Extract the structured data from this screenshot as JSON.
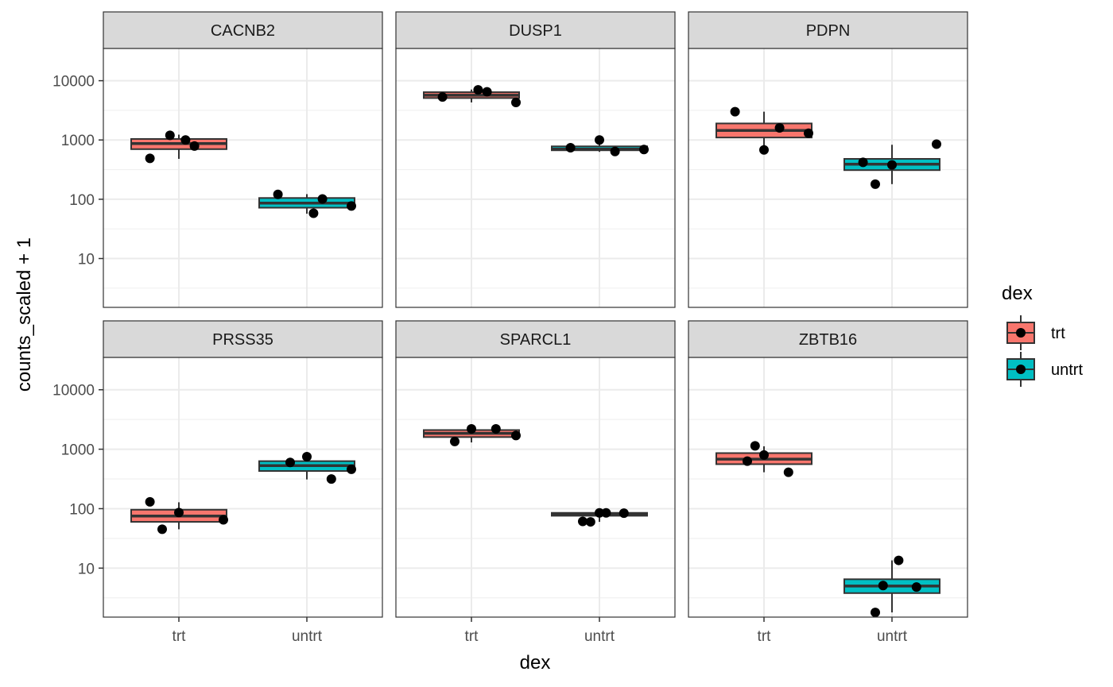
{
  "chart_data": {
    "type": "box",
    "xlabel": "dex",
    "ylabel": "counts_scaled + 1",
    "y_scale": "log10",
    "y_ticks": [
      10,
      100,
      1000,
      10000
    ],
    "y_tick_labels": [
      "10",
      "100",
      "1000",
      "10000"
    ],
    "ylim": [
      1.5,
      35000
    ],
    "categories": [
      "trt",
      "untrt"
    ],
    "grid": true,
    "legend": {
      "title": "dex",
      "position": "right",
      "entries": [
        {
          "label": "trt",
          "color": "#F8766D"
        },
        {
          "label": "untrt",
          "color": "#00BFC4"
        }
      ]
    },
    "facets": [
      {
        "name": "CACNB2",
        "boxes": {
          "trt": {
            "lower": 700,
            "median": 870,
            "upper": 1040,
            "whisker_low": 480,
            "whisker_high": 1230,
            "points": [
              1200,
              1000,
              790,
              490
            ]
          },
          "untrt": {
            "lower": 72,
            "median": 86,
            "upper": 105,
            "whisker_low": 57,
            "whisker_high": 122,
            "points": [
              58,
              101,
              121,
              77
            ]
          }
        }
      },
      {
        "name": "DUSP1",
        "boxes": {
          "trt": {
            "lower": 5100,
            "median": 5700,
            "upper": 6400,
            "whisker_low": 4300,
            "whisker_high": 7100,
            "points": [
              7000,
              6500,
              5300,
              4300
            ]
          },
          "untrt": {
            "lower": 670,
            "median": 700,
            "upper": 780,
            "whisker_low": 630,
            "whisker_high": 1000,
            "points": [
              640,
              740,
              690,
              1000
            ]
          }
        }
      },
      {
        "name": "PDPN",
        "boxes": {
          "trt": {
            "lower": 1100,
            "median": 1450,
            "upper": 1900,
            "whisker_low": 680,
            "whisker_high": 3000,
            "points": [
              1600,
              3000,
              1300,
              680
            ]
          },
          "untrt": {
            "lower": 310,
            "median": 390,
            "upper": 480,
            "whisker_low": 180,
            "whisker_high": 830,
            "points": [
              420,
              850,
              380,
              180
            ]
          }
        }
      },
      {
        "name": "PRSS35",
        "boxes": {
          "trt": {
            "lower": 60,
            "median": 75,
            "upper": 96,
            "whisker_low": 45,
            "whisker_high": 128,
            "points": [
              130,
              65,
              86,
              45
            ]
          },
          "untrt": {
            "lower": 430,
            "median": 530,
            "upper": 630,
            "whisker_low": 310,
            "whisker_high": 750,
            "points": [
              460,
              750,
              600,
              315
            ]
          }
        }
      },
      {
        "name": "SPARCL1",
        "boxes": {
          "trt": {
            "lower": 1600,
            "median": 1850,
            "upper": 2100,
            "whisker_low": 1300,
            "whisker_high": 2200,
            "points": [
              1700,
              2200,
              1350,
              2200
            ]
          },
          "untrt": {
            "lower": 76,
            "median": 81,
            "upper": 85,
            "whisker_low": 60,
            "whisker_high": 86,
            "points": [
              85,
              61,
              84,
              60,
              85
            ]
          }
        }
      },
      {
        "name": "ZBTB16",
        "boxes": {
          "trt": {
            "lower": 560,
            "median": 680,
            "upper": 860,
            "whisker_low": 410,
            "whisker_high": 1120,
            "points": [
              800,
              630,
              410,
              1140
            ]
          },
          "untrt": {
            "lower": 3.8,
            "median": 5.0,
            "upper": 6.5,
            "whisker_low": 1.8,
            "whisker_high": 13.5,
            "points": [
              1.8,
              4.8,
              5.1,
              13.5
            ]
          }
        }
      }
    ]
  }
}
